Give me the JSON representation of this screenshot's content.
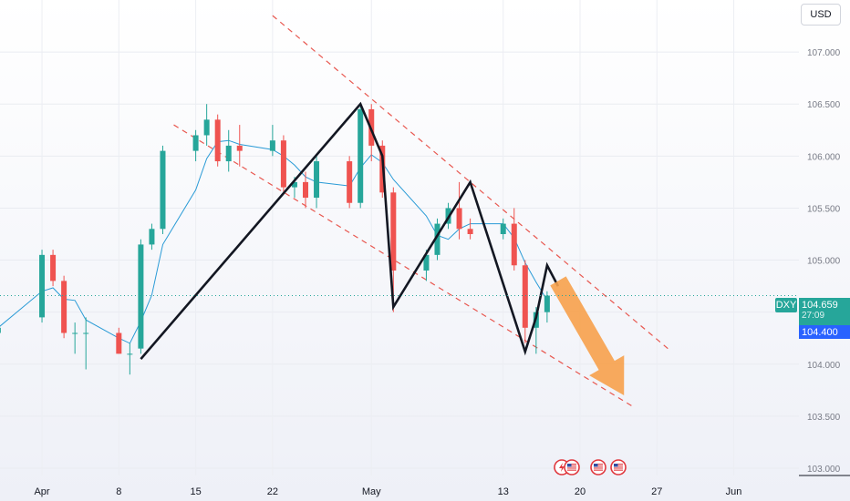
{
  "currency": "USD",
  "symbol_tag": "DXY",
  "last_price": "104.659",
  "countdown": "27:09",
  "secondary_price": "104.400",
  "colors": {
    "up": "#26a69a",
    "down": "#ef5350",
    "pattern": "#131722",
    "channel": "#e8574f",
    "forecast_arrow": "#f7a14b",
    "moving_average": "#2a9bd6",
    "dxy_tag": "#26a69a",
    "price_box": "#26a69a",
    "secondary_box": "#2962ff"
  },
  "event_icons": [
    "lightning-flag-icon",
    "us-flag-icon",
    "us-flag-icon",
    "us-flag-icon"
  ],
  "chart_data": {
    "type": "candlestick",
    "symbol": "DXY",
    "y_ticks": [
      103.0,
      103.5,
      104.0,
      104.5,
      105.0,
      105.5,
      106.0,
      106.5,
      107.0
    ],
    "y_tick_labels": [
      "103.000",
      "103.500",
      "104.000",
      "104.500",
      "105.000",
      "105.500",
      "106.000",
      "106.500",
      "107.000"
    ],
    "ylim": [
      102.93,
      107.5
    ],
    "x_ticks": [
      "Apr",
      "8",
      "15",
      "22",
      "May",
      "13",
      "20",
      "27",
      "Jun"
    ],
    "last_price": 104.659,
    "price_line": 104.659,
    "ohlc": [
      {
        "t": "Mar 28",
        "o": 104.3,
        "h": 104.45,
        "l": 104.2,
        "c": 104.35
      },
      {
        "t": "Apr 1",
        "o": 104.45,
        "h": 105.1,
        "l": 104.4,
        "c": 105.05
      },
      {
        "t": "Apr 2",
        "o": 105.05,
        "h": 105.1,
        "l": 104.75,
        "c": 104.8
      },
      {
        "t": "Apr 3",
        "o": 104.8,
        "h": 104.85,
        "l": 104.25,
        "c": 104.3
      },
      {
        "t": "Apr 4",
        "o": 104.3,
        "h": 104.4,
        "l": 104.1,
        "c": 104.3
      },
      {
        "t": "Apr 5",
        "o": 104.3,
        "h": 104.45,
        "l": 103.95,
        "c": 104.3
      },
      {
        "t": "Apr 8",
        "o": 104.3,
        "h": 104.35,
        "l": 104.1,
        "c": 104.1
      },
      {
        "t": "Apr 9",
        "o": 104.1,
        "h": 104.2,
        "l": 103.9,
        "c": 104.1
      },
      {
        "t": "Apr 10",
        "o": 104.15,
        "h": 105.2,
        "l": 104.1,
        "c": 105.15
      },
      {
        "t": "Apr 11",
        "o": 105.15,
        "h": 105.35,
        "l": 105.1,
        "c": 105.3
      },
      {
        "t": "Apr 12",
        "o": 105.3,
        "h": 106.1,
        "l": 105.25,
        "c": 106.05
      },
      {
        "t": "Apr 15",
        "o": 106.05,
        "h": 106.25,
        "l": 105.95,
        "c": 106.2
      },
      {
        "t": "Apr 16",
        "o": 106.2,
        "h": 106.5,
        "l": 106.1,
        "c": 106.35
      },
      {
        "t": "Apr 17",
        "o": 106.35,
        "h": 106.4,
        "l": 105.9,
        "c": 105.95
      },
      {
        "t": "Apr 18",
        "o": 105.95,
        "h": 106.25,
        "l": 105.85,
        "c": 106.1
      },
      {
        "t": "Apr 19",
        "o": 106.1,
        "h": 106.3,
        "l": 105.9,
        "c": 106.05
      },
      {
        "t": "Apr 22",
        "o": 106.05,
        "h": 106.3,
        "l": 106.0,
        "c": 106.15
      },
      {
        "t": "Apr 23",
        "o": 106.15,
        "h": 106.2,
        "l": 105.65,
        "c": 105.7
      },
      {
        "t": "Apr 24",
        "o": 105.7,
        "h": 105.8,
        "l": 105.6,
        "c": 105.75
      },
      {
        "t": "Apr 25",
        "o": 105.75,
        "h": 105.85,
        "l": 105.5,
        "c": 105.6
      },
      {
        "t": "Apr 26",
        "o": 105.6,
        "h": 106.0,
        "l": 105.5,
        "c": 105.95
      },
      {
        "t": "Apr 29",
        "o": 105.95,
        "h": 106.0,
        "l": 105.5,
        "c": 105.55
      },
      {
        "t": "Apr 30",
        "o": 105.55,
        "h": 106.5,
        "l": 105.5,
        "c": 106.45
      },
      {
        "t": "May 1",
        "o": 106.45,
        "h": 106.5,
        "l": 105.95,
        "c": 106.1
      },
      {
        "t": "May 2",
        "o": 106.1,
        "h": 106.15,
        "l": 105.6,
        "c": 105.65
      },
      {
        "t": "May 3",
        "o": 105.65,
        "h": 105.7,
        "l": 104.5,
        "c": 104.9
      },
      {
        "t": "May 6",
        "o": 104.9,
        "h": 105.1,
        "l": 104.8,
        "c": 105.05
      },
      {
        "t": "May 7",
        "o": 105.05,
        "h": 105.4,
        "l": 105.0,
        "c": 105.35
      },
      {
        "t": "May 8",
        "o": 105.35,
        "h": 105.55,
        "l": 105.3,
        "c": 105.5
      },
      {
        "t": "May 9",
        "o": 105.5,
        "h": 105.75,
        "l": 105.2,
        "c": 105.3
      },
      {
        "t": "May 10",
        "o": 105.3,
        "h": 105.4,
        "l": 105.2,
        "c": 105.25
      },
      {
        "t": "May 13",
        "o": 105.25,
        "h": 105.4,
        "l": 105.2,
        "c": 105.35
      },
      {
        "t": "May 14",
        "o": 105.35,
        "h": 105.5,
        "l": 104.9,
        "c": 104.95
      },
      {
        "t": "May 15",
        "o": 104.95,
        "h": 105.0,
        "l": 104.2,
        "c": 104.35
      },
      {
        "t": "May 16",
        "o": 104.35,
        "h": 104.55,
        "l": 104.1,
        "c": 104.5
      },
      {
        "t": "May 17",
        "o": 104.5,
        "h": 104.7,
        "l": 104.4,
        "c": 104.659
      }
    ],
    "pattern_path": [
      {
        "t": "Apr 10",
        "y": 104.05
      },
      {
        "t": "Apr 30",
        "y": 106.5
      },
      {
        "t": "May 2",
        "y": 106.0
      },
      {
        "t": "May 3",
        "y": 104.55
      },
      {
        "t": "May 10",
        "y": 105.75
      },
      {
        "t": "May 15",
        "y": 104.12
      },
      {
        "t": "May 16",
        "y": 104.45
      },
      {
        "t": "May 17",
        "y": 104.95
      },
      {
        "t": "May 18",
        "y": 104.75
      }
    ],
    "forecast_arrow": {
      "from": {
        "t": "May 18",
        "y": 104.8
      },
      "to": {
        "t": "May 24",
        "y": 103.7
      }
    },
    "channel_upper": [
      {
        "t": "Apr 22",
        "y": 107.35
      },
      {
        "t": "May 28",
        "y": 104.15
      }
    ],
    "channel_lower": [
      {
        "t": "Apr 13",
        "y": 106.3
      },
      {
        "t": "May 25",
        "y": 103.58
      }
    ]
  }
}
